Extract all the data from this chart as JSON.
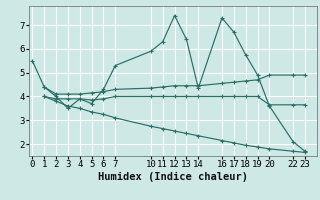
{
  "xlabel": "Humidex (Indice chaleur)",
  "background_color": "#cde8e5",
  "grid_color": "#ffffff",
  "line_color": "#2a6e68",
  "lines": [
    {
      "x": [
        0,
        1,
        2,
        3,
        4,
        5,
        6,
        7,
        10,
        11,
        12,
        13,
        14,
        16,
        17,
        18,
        19,
        20,
        22,
        23
      ],
      "y": [
        5.5,
        4.4,
        4.0,
        3.5,
        3.9,
        3.7,
        4.3,
        5.3,
        5.9,
        6.3,
        7.4,
        6.4,
        4.35,
        7.3,
        6.7,
        5.75,
        4.9,
        3.6,
        2.1,
        1.7
      ]
    },
    {
      "x": [
        1,
        2,
        3,
        4,
        5,
        6,
        7,
        10,
        11,
        12,
        13,
        14,
        16,
        17,
        18,
        19,
        20,
        22,
        23
      ],
      "y": [
        4.4,
        4.1,
        4.1,
        4.1,
        4.15,
        4.2,
        4.3,
        4.35,
        4.4,
        4.45,
        4.45,
        4.45,
        4.55,
        4.6,
        4.65,
        4.7,
        4.9,
        4.9,
        4.9
      ]
    },
    {
      "x": [
        1,
        2,
        3,
        4,
        5,
        6,
        7,
        10,
        11,
        12,
        13,
        14,
        16,
        17,
        18,
        19,
        20,
        22,
        23
      ],
      "y": [
        4.0,
        3.9,
        3.9,
        3.9,
        3.85,
        3.9,
        4.0,
        4.0,
        4.0,
        4.0,
        4.0,
        4.0,
        4.0,
        4.0,
        4.0,
        4.0,
        3.65,
        3.65,
        3.65
      ]
    },
    {
      "x": [
        1,
        2,
        3,
        4,
        5,
        6,
        7,
        10,
        11,
        12,
        13,
        14,
        16,
        17,
        18,
        19,
        20,
        22,
        23
      ],
      "y": [
        4.0,
        3.8,
        3.6,
        3.5,
        3.35,
        3.25,
        3.1,
        2.75,
        2.65,
        2.55,
        2.45,
        2.35,
        2.15,
        2.05,
        1.95,
        1.88,
        1.8,
        1.7,
        1.65
      ]
    }
  ],
  "xlim": [
    -0.3,
    24.0
  ],
  "ylim": [
    1.5,
    7.8
  ],
  "xticks": [
    0,
    1,
    2,
    3,
    4,
    5,
    6,
    7,
    10,
    11,
    12,
    13,
    14,
    16,
    17,
    18,
    19,
    20,
    22,
    23
  ],
  "yticks": [
    2,
    3,
    4,
    5,
    6,
    7
  ],
  "tick_fontsize": 6.5,
  "xlabel_fontsize": 7.5
}
